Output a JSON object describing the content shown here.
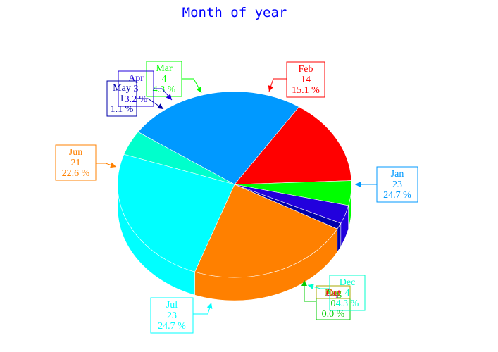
{
  "chart_data": {
    "type": "pie",
    "title": "Month of year",
    "unit_suffix": " %",
    "slices": [
      {
        "label": "Jan",
        "value": 23,
        "percent": "24.7",
        "color": "#0099ff"
      },
      {
        "label": "Feb",
        "value": 14,
        "percent": "15.1",
        "color": "#ff0000"
      },
      {
        "label": "Mar",
        "value": 4,
        "percent": "4.3",
        "color": "#00ff00"
      },
      {
        "label": "Apr",
        "value": 3,
        "percent": "3.2",
        "color": "#2200dd"
      },
      {
        "label": "May",
        "value": 1,
        "percent": "1.1",
        "color": "#0000aa"
      },
      {
        "label": "Jun",
        "value": 21,
        "percent": "22.6",
        "color": "#ff8000"
      },
      {
        "label": "Jul",
        "value": 23,
        "percent": "24.7",
        "color": "#00ffff"
      },
      {
        "label": "Aug",
        "value": 0,
        "percent": "0.0",
        "color": "#00cc00"
      },
      {
        "label": "Sep",
        "value": 0,
        "percent": "0.0",
        "color": "#cc00cc"
      },
      {
        "label": "Oct",
        "value": 0,
        "percent": "0.0",
        "color": "#ff0000"
      },
      {
        "label": "Nov",
        "value": 0,
        "percent": "0.0",
        "color": "#aaaa00"
      },
      {
        "label": "Dec",
        "value": 4,
        "percent": "4.3",
        "color": "#00ffcc"
      }
    ],
    "legend": "none"
  }
}
